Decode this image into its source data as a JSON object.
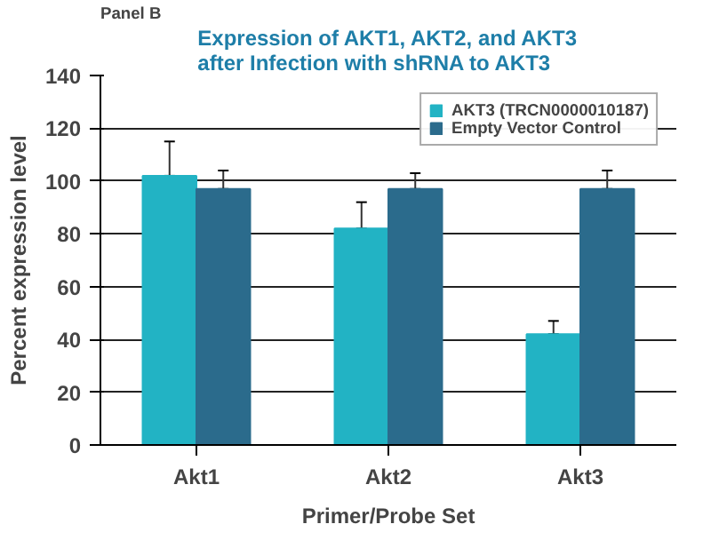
{
  "chart_data": {
    "type": "bar",
    "title": "Expression of AKT1, AKT2, and AKT3 after Infection with shRNA to AKT3",
    "xlabel": "Primer/Probe Set",
    "ylabel": "Percent expression level",
    "annotations": [
      "Panel B"
    ],
    "categories": [
      "Akt1",
      "Akt2",
      "Akt3"
    ],
    "series": [
      {
        "name": "AKT3 (TRCN0000010187)",
        "color": "#22b3c4",
        "values": [
          102,
          82,
          42
        ],
        "errors": [
          [
            102,
            115
          ],
          [
            82,
            92
          ],
          [
            42,
            47
          ]
        ]
      },
      {
        "name": "Empty Vector Control",
        "color": "#2b6b8c",
        "values": [
          97,
          97,
          97
        ],
        "errors": [
          [
            97,
            104
          ],
          [
            97,
            103
          ],
          [
            97,
            104
          ]
        ]
      }
    ],
    "ylim": [
      0,
      140
    ],
    "yticks": [
      0,
      20,
      40,
      60,
      80,
      100,
      120,
      140
    ],
    "grid": "y",
    "legend": "top right"
  }
}
